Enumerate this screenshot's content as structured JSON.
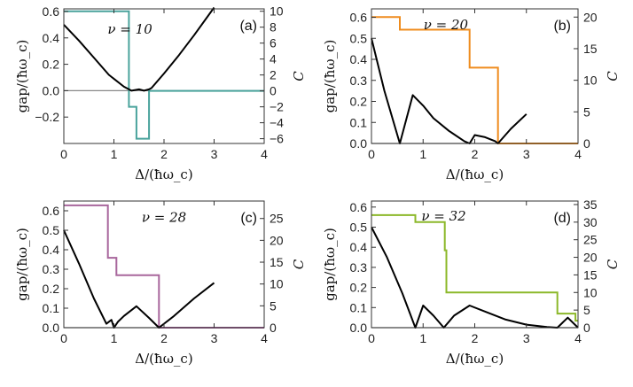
{
  "chart_data": [
    {
      "type": "line",
      "panel_label": "(a)",
      "annotation": "ν = 10",
      "xlabel": "Δ/(ħω_c)",
      "ylabel_left": "gap/(ħω_c)",
      "ylabel_right": "C",
      "xlim": [
        0,
        4
      ],
      "ylim_left": [
        -0.4,
        0.62
      ],
      "ylim_right": [
        -6.6,
        10.3
      ],
      "xticks": [
        0,
        1,
        2,
        3,
        4
      ],
      "yticks_left": [
        -0.2,
        0.0,
        0.2,
        0.4,
        0.6
      ],
      "yticks_left_labels": [
        "−0.2",
        "0.0",
        "0.2",
        "0.4",
        "0.6"
      ],
      "yticks_right": [
        -6,
        -4,
        -2,
        0,
        2,
        4,
        6,
        8,
        10
      ],
      "yticks_right_labels": [
        "−6",
        "−4",
        "−2",
        "0",
        "2",
        "4",
        "6",
        "8",
        "10"
      ],
      "colors": {
        "gap": "#000000",
        "chern": "#4aa39c",
        "zero_line": "#888888"
      },
      "gap_curve": {
        "x": [
          0,
          0.3,
          0.6,
          0.9,
          1.2,
          1.35,
          1.5,
          1.6,
          1.7,
          1.75,
          2.0,
          2.3,
          2.6,
          3.0
        ],
        "y": [
          0.5,
          0.38,
          0.25,
          0.12,
          0.03,
          0.0,
          0.01,
          0.0,
          0.01,
          0.02,
          0.13,
          0.27,
          0.42,
          0.63
        ]
      },
      "chern_steps": {
        "x": [
          0,
          1.3,
          1.3,
          1.45,
          1.45,
          1.7,
          1.7,
          4.0
        ],
        "y": [
          10,
          10,
          -2,
          -2,
          -6,
          -6,
          0,
          0
        ]
      }
    },
    {
      "type": "line",
      "panel_label": "(b)",
      "annotation": "ν = 20",
      "xlabel": "Δ/(ħω_c)",
      "ylabel_left": "gap/(ħω_c)",
      "ylabel_right": "C",
      "xlim": [
        0,
        4
      ],
      "ylim_left": [
        0,
        0.64
      ],
      "ylim_right": [
        0,
        21.3
      ],
      "xticks": [
        0,
        1,
        2,
        3,
        4
      ],
      "yticks_left": [
        0.0,
        0.1,
        0.2,
        0.3,
        0.4,
        0.5,
        0.6
      ],
      "yticks_left_labels": [
        "0.0",
        "0.1",
        "0.2",
        "0.3",
        "0.4",
        "0.5",
        "0.6"
      ],
      "yticks_right": [
        0,
        5,
        10,
        15,
        20
      ],
      "yticks_right_labels": [
        "0",
        "5",
        "10",
        "15",
        "20"
      ],
      "colors": {
        "gap": "#000000",
        "chern": "#ef8c1e",
        "zero_line": "#888888"
      },
      "gap_curve": {
        "x": [
          0,
          0.25,
          0.55,
          0.8,
          1.0,
          1.2,
          1.5,
          1.8,
          1.9,
          2.0,
          2.2,
          2.4,
          2.45,
          2.7,
          3.0
        ],
        "y": [
          0.5,
          0.25,
          0.0,
          0.23,
          0.18,
          0.12,
          0.06,
          0.01,
          0.0,
          0.04,
          0.03,
          0.01,
          0.0,
          0.07,
          0.14
        ]
      },
      "chern_steps": {
        "x": [
          0,
          0.55,
          0.55,
          1.9,
          1.9,
          2.45,
          2.45,
          4.0
        ],
        "y": [
          20,
          20,
          18,
          18,
          12,
          12,
          0,
          0
        ]
      }
    },
    {
      "type": "line",
      "panel_label": "(c)",
      "annotation": "ν = 28",
      "xlabel": "Δ/(ħω_c)",
      "ylabel_left": "gap/(ħω_c)",
      "ylabel_right": "C",
      "xlim": [
        0,
        4
      ],
      "ylim_left": [
        0,
        0.65
      ],
      "ylim_right": [
        0,
        29
      ],
      "xticks": [
        0,
        1,
        2,
        3,
        4
      ],
      "yticks_left": [
        0.0,
        0.1,
        0.2,
        0.3,
        0.4,
        0.5,
        0.6
      ],
      "yticks_left_labels": [
        "0.0",
        "0.1",
        "0.2",
        "0.3",
        "0.4",
        "0.5",
        "0.6"
      ],
      "yticks_right": [
        0,
        5,
        10,
        15,
        20,
        25
      ],
      "yticks_right_labels": [
        "0",
        "5",
        "10",
        "15",
        "20",
        "25"
      ],
      "colors": {
        "gap": "#000000",
        "chern": "#a8669c",
        "zero_line": "#888888"
      },
      "gap_curve": {
        "x": [
          0,
          0.3,
          0.6,
          0.85,
          0.95,
          1.0,
          1.08,
          1.2,
          1.45,
          1.7,
          1.9,
          2.2,
          2.6,
          3.0
        ],
        "y": [
          0.5,
          0.33,
          0.15,
          0.02,
          0.04,
          0.0,
          0.03,
          0.06,
          0.11,
          0.05,
          0.0,
          0.06,
          0.15,
          0.23
        ]
      },
      "chern_steps": {
        "x": [
          0,
          0.88,
          0.88,
          1.05,
          1.05,
          1.9,
          1.9,
          4.0
        ],
        "y": [
          28,
          28,
          16,
          16,
          12,
          12,
          0,
          0
        ]
      }
    },
    {
      "type": "line",
      "panel_label": "(d)",
      "annotation": "ν = 32",
      "xlabel": "Δ/(ħω_c)",
      "ylabel_left": "gap/(ħω_c)",
      "ylabel_right": "C",
      "xlim": [
        0,
        4
      ],
      "ylim_left": [
        0,
        0.63
      ],
      "ylim_right": [
        0,
        36
      ],
      "xticks": [
        0,
        1,
        2,
        3,
        4
      ],
      "yticks_left": [
        0.0,
        0.1,
        0.2,
        0.3,
        0.4,
        0.5,
        0.6
      ],
      "yticks_left_labels": [
        "0.0",
        "0.1",
        "0.2",
        "0.3",
        "0.4",
        "0.5",
        "0.6"
      ],
      "yticks_right": [
        0,
        5,
        10,
        15,
        20,
        25,
        30,
        35
      ],
      "yticks_right_labels": [
        "0",
        "5",
        "10",
        "15",
        "20",
        "25",
        "30",
        "35"
      ],
      "colors": {
        "gap": "#000000",
        "chern": "#8cb82a",
        "zero_line": "#888888"
      },
      "gap_curve": {
        "x": [
          0,
          0.3,
          0.6,
          0.85,
          1.0,
          1.2,
          1.4,
          1.6,
          1.9,
          2.2,
          2.6,
          3.0,
          3.4,
          3.6,
          3.8,
          4.0
        ],
        "y": [
          0.5,
          0.35,
          0.17,
          0.0,
          0.11,
          0.06,
          0.0,
          0.06,
          0.11,
          0.08,
          0.04,
          0.015,
          0.003,
          0.0,
          0.05,
          0.0
        ]
      },
      "chern_steps": {
        "x": [
          0,
          0.85,
          0.85,
          1.42,
          1.42,
          1.45,
          1.45,
          3.6,
          3.6,
          3.95,
          3.95,
          4.0
        ],
        "y": [
          32,
          32,
          30,
          30,
          22,
          22,
          10,
          10,
          4,
          4,
          2,
          2
        ]
      }
    }
  ]
}
